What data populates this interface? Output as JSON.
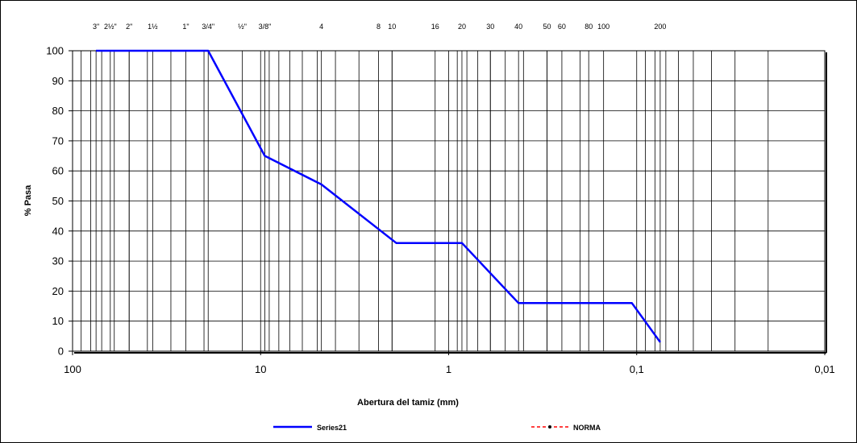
{
  "chart_data": {
    "type": "line",
    "xscale": "log",
    "x_reversed": true,
    "xlim": [
      100,
      0.01
    ],
    "ylim": [
      0,
      100
    ],
    "grid": true,
    "legend_placement": "bottom",
    "xlabel": "Abertura del tamiz (mm)",
    "ylabel": "% Pasa",
    "x_ticks": [
      100,
      10,
      1,
      0.1,
      0.01
    ],
    "x_tick_labels": [
      "100",
      "10",
      "1",
      "0,1",
      "0,01"
    ],
    "y_ticks": [
      0,
      10,
      20,
      30,
      40,
      50,
      60,
      70,
      80,
      90,
      100
    ],
    "y_tick_labels": [
      "0",
      "10",
      "20",
      "30",
      "40",
      "50",
      "60",
      "70",
      "80",
      "90",
      "100"
    ],
    "sieves": [
      {
        "label": "3\"",
        "opening": 75
      },
      {
        "label": "2½\"",
        "opening": 63
      },
      {
        "label": "2\"",
        "opening": 50
      },
      {
        "label": "1½",
        "opening": 37.5
      },
      {
        "label": "1\"",
        "opening": 25
      },
      {
        "label": "3/4\"",
        "opening": 19
      },
      {
        "label": "½\"",
        "opening": 12.5
      },
      {
        "label": "3/8\"",
        "opening": 9.5
      },
      {
        "label": "4",
        "opening": 4.75
      },
      {
        "label": "8",
        "opening": 2.36
      },
      {
        "label": "10",
        "opening": 2.0
      },
      {
        "label": "16",
        "opening": 1.18
      },
      {
        "label": "20",
        "opening": 0.85
      },
      {
        "label": "30",
        "opening": 0.6
      },
      {
        "label": "40",
        "opening": 0.425
      },
      {
        "label": "50",
        "opening": 0.3
      },
      {
        "label": "60",
        "opening": 0.25
      },
      {
        "label": "80",
        "opening": 0.18
      },
      {
        "label": "100",
        "opening": 0.15
      },
      {
        "label": "200",
        "opening": 0.075
      }
    ],
    "series": [
      {
        "name": "Series21",
        "color": "#0000FF",
        "style": "solid",
        "x": [
          75,
          19,
          9.5,
          4.75,
          1.9,
          0.85,
          0.425,
          0.106,
          0.075
        ],
        "y": [
          100,
          100,
          65,
          55.5,
          36,
          36,
          16,
          16,
          3
        ]
      },
      {
        "name": "NORMA",
        "color": "#FF0000",
        "style": "dashed",
        "x": [],
        "y": []
      }
    ]
  }
}
